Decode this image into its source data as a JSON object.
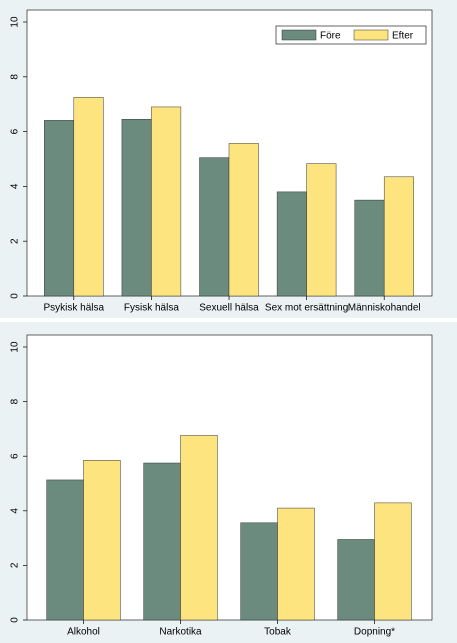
{
  "chart_data": [
    {
      "type": "bar",
      "categories": [
        "Psykisk hälsa",
        "Fysisk hälsa",
        "Sexuell hälsa",
        "Sex mot ersättning",
        "Människohandel"
      ],
      "series": [
        {
          "name": "Före",
          "color": "#6b8b7f",
          "values": [
            6.41,
            6.45,
            5.05,
            3.8,
            3.5
          ]
        },
        {
          "name": "Efter",
          "color": "#fde47f",
          "values": [
            7.25,
            6.9,
            5.57,
            4.83,
            4.35
          ]
        }
      ],
      "ylim": [
        0,
        10
      ],
      "yticks": [
        0,
        2,
        4,
        6,
        8,
        10
      ],
      "grid": false,
      "legend": "top-right"
    },
    {
      "type": "bar",
      "categories": [
        "Alkohol",
        "Narkotika",
        "Tobak",
        "Dopning*"
      ],
      "series": [
        {
          "color": "#6b8b7f",
          "values": [
            5.13,
            5.75,
            3.56,
            2.95
          ]
        },
        {
          "color": "#fde47f",
          "values": [
            5.85,
            6.76,
            4.1,
            4.29
          ]
        }
      ],
      "ylim": [
        0,
        10
      ],
      "yticks": [
        0,
        2,
        4,
        6,
        8,
        10
      ],
      "grid": false
    }
  ]
}
